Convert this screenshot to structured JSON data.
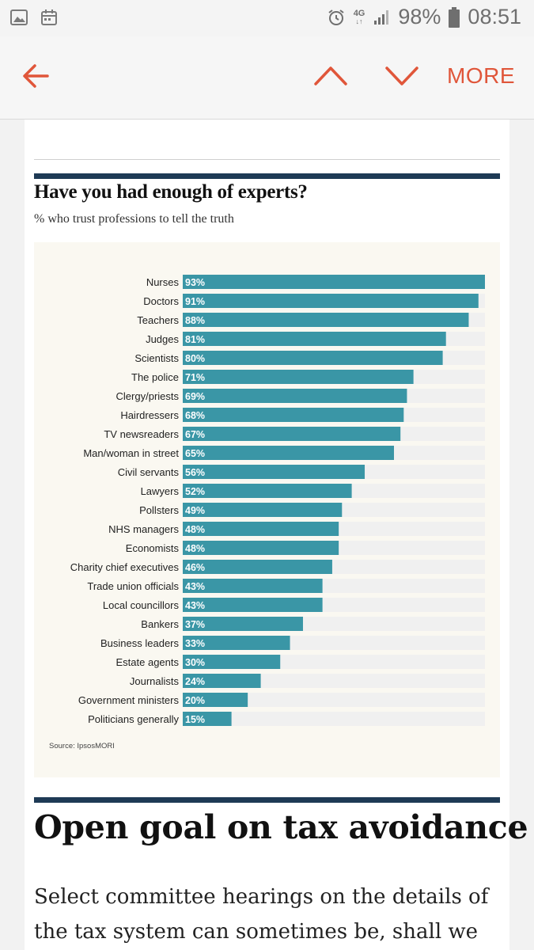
{
  "status_bar": {
    "network": "4G",
    "battery": "98%",
    "time": "08:51"
  },
  "app_bar": {
    "more_label": "MORE"
  },
  "colors": {
    "accent": "#e0563a",
    "bar": "#3a96a6",
    "track": "#f0f0f0",
    "rule": "#1e3a55"
  },
  "chart_data": {
    "type": "bar",
    "orientation": "horizontal",
    "title": "Have you had enough of experts?",
    "subtitle": "% who trust professions to tell the truth",
    "source": "Source: IpsosMORI",
    "xlim": [
      0,
      100
    ],
    "categories": [
      "Nurses",
      "Doctors",
      "Teachers",
      "Judges",
      "Scientists",
      "The police",
      "Clergy/priests",
      "Hairdressers",
      "TV newsreaders",
      "Man/woman in street",
      "Civil servants",
      "Lawyers",
      "Pollsters",
      "NHS managers",
      "Economists",
      "Charity chief executives",
      "Trade union officials",
      "Local councillors",
      "Bankers",
      "Business leaders",
      "Estate agents",
      "Journalists",
      "Government ministers",
      "Politicians generally"
    ],
    "values": [
      93,
      91,
      88,
      81,
      80,
      71,
      69,
      68,
      67,
      65,
      56,
      52,
      49,
      48,
      48,
      46,
      43,
      43,
      37,
      33,
      30,
      24,
      20,
      15
    ],
    "value_labels": [
      "93%",
      "91%",
      "88%",
      "81%",
      "80%",
      "71%",
      "69%",
      "68%",
      "67%",
      "65%",
      "56%",
      "52%",
      "49%",
      "48%",
      "48%",
      "46%",
      "43%",
      "43%",
      "37%",
      "33%",
      "30%",
      "24%",
      "20%",
      "15%"
    ]
  },
  "article": {
    "headline": "Open goal on tax avoidance",
    "body": "Select committee hearings on the details of the tax system can sometimes be, shall we"
  }
}
